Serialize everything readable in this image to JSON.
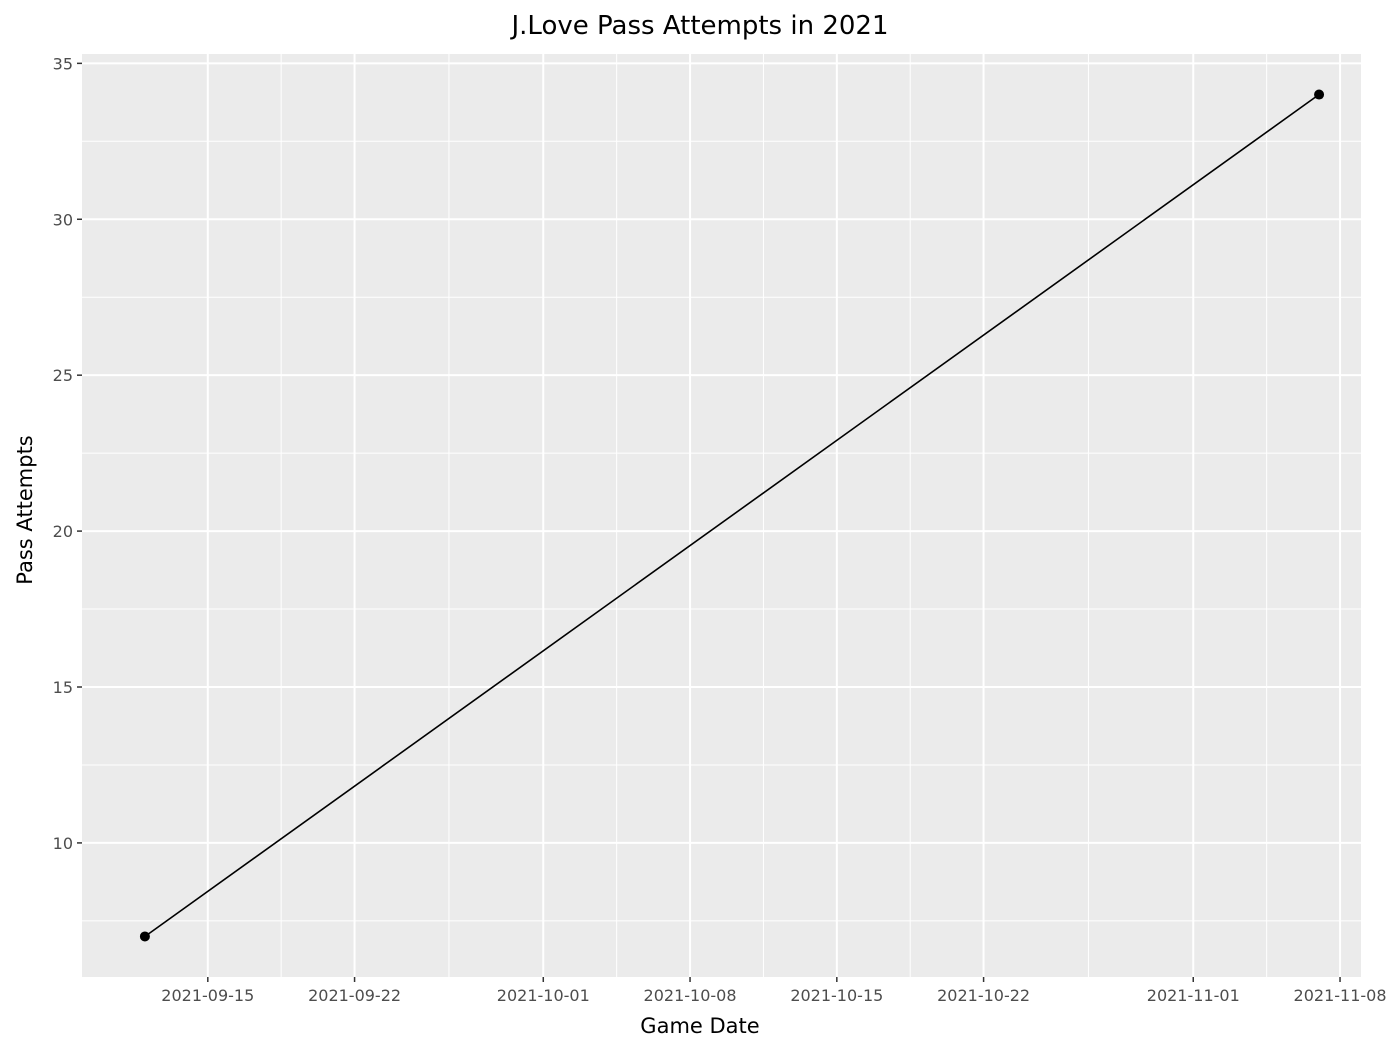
{
  "chart_data": {
    "type": "line",
    "title": "J.Love Pass Attempts in 2021",
    "xlabel": "Game Date",
    "ylabel": "Pass Attempts",
    "x_ticks": [
      "2021-09-15",
      "2021-09-22",
      "2021-10-01",
      "2021-10-08",
      "2021-10-15",
      "2021-10-22",
      "2021-11-01",
      "2021-11-08"
    ],
    "y_ticks": [
      10,
      15,
      20,
      25,
      30,
      35
    ],
    "xlim": [
      "2021-09-09",
      "2021-11-09"
    ],
    "ylim": [
      5.7,
      35.3
    ],
    "grid": true,
    "series": [
      {
        "x": [
          "2021-09-12",
          "2021-11-07"
        ],
        "y": [
          7,
          34
        ],
        "color": "#000000"
      }
    ],
    "colors": {
      "panel_background": "#ebebeb",
      "grid": "#ffffff",
      "line": "#000000",
      "tick_label": "#4d4d4d"
    }
  }
}
